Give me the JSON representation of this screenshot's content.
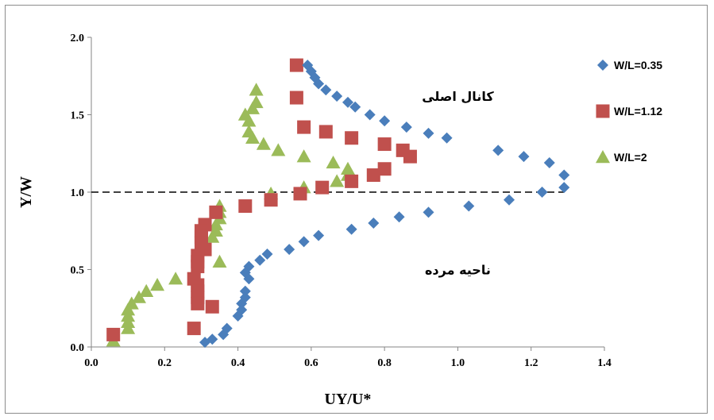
{
  "chart_data": {
    "type": "scatter",
    "title": "",
    "xlabel": "UY/U*",
    "ylabel": "Y/W",
    "xlim": [
      0.0,
      1.4
    ],
    "ylim": [
      0.0,
      2.0
    ],
    "x_ticks": [
      "0.0",
      "0.2",
      "0.4",
      "0.6",
      "0.8",
      "1.0",
      "1.2",
      "1.4"
    ],
    "y_ticks": [
      "0.0",
      "0.5",
      "1.0",
      "1.5",
      "2.0"
    ],
    "grid": false,
    "legend_position": "right",
    "reference_line": {
      "y": 1.0,
      "style": "dashed",
      "x_range": [
        0.0,
        1.29
      ]
    },
    "annotations": [
      {
        "text": "کانال اصلی",
        "x": 1.0,
        "y": 1.62
      },
      {
        "text": "ناحیه مرده",
        "x": 1.0,
        "y": 0.5
      }
    ],
    "series": [
      {
        "name": "W/L=0.35",
        "marker": "diamond",
        "color": "#4a7ebb",
        "points": [
          [
            0.59,
            1.82
          ],
          [
            0.6,
            1.78
          ],
          [
            0.61,
            1.74
          ],
          [
            0.62,
            1.7
          ],
          [
            0.64,
            1.66
          ],
          [
            0.67,
            1.62
          ],
          [
            0.7,
            1.58
          ],
          [
            0.72,
            1.55
          ],
          [
            0.76,
            1.5
          ],
          [
            0.8,
            1.46
          ],
          [
            0.86,
            1.42
          ],
          [
            0.92,
            1.38
          ],
          [
            0.97,
            1.35
          ],
          [
            1.11,
            1.27
          ],
          [
            1.18,
            1.23
          ],
          [
            1.25,
            1.19
          ],
          [
            1.29,
            1.11
          ],
          [
            1.29,
            1.03
          ],
          [
            1.23,
            1.0
          ],
          [
            1.14,
            0.95
          ],
          [
            1.03,
            0.91
          ],
          [
            0.92,
            0.87
          ],
          [
            0.84,
            0.84
          ],
          [
            0.77,
            0.8
          ],
          [
            0.71,
            0.76
          ],
          [
            0.62,
            0.72
          ],
          [
            0.58,
            0.68
          ],
          [
            0.54,
            0.63
          ],
          [
            0.48,
            0.6
          ],
          [
            0.46,
            0.56
          ],
          [
            0.43,
            0.52
          ],
          [
            0.42,
            0.48
          ],
          [
            0.43,
            0.44
          ],
          [
            0.42,
            0.36
          ],
          [
            0.42,
            0.32
          ],
          [
            0.41,
            0.28
          ],
          [
            0.41,
            0.24
          ],
          [
            0.4,
            0.2
          ],
          [
            0.37,
            0.12
          ],
          [
            0.36,
            0.08
          ],
          [
            0.33,
            0.05
          ],
          [
            0.31,
            0.03
          ]
        ]
      },
      {
        "name": "W/L=1.12",
        "marker": "square",
        "color": "#c0504d",
        "points": [
          [
            0.56,
            1.82
          ],
          [
            0.56,
            1.61
          ],
          [
            0.58,
            1.42
          ],
          [
            0.64,
            1.39
          ],
          [
            0.71,
            1.35
          ],
          [
            0.8,
            1.31
          ],
          [
            0.85,
            1.27
          ],
          [
            0.87,
            1.23
          ],
          [
            0.8,
            1.15
          ],
          [
            0.77,
            1.11
          ],
          [
            0.71,
            1.07
          ],
          [
            0.63,
            1.03
          ],
          [
            0.57,
            0.99
          ],
          [
            0.49,
            0.95
          ],
          [
            0.42,
            0.91
          ],
          [
            0.34,
            0.87
          ],
          [
            0.31,
            0.79
          ],
          [
            0.3,
            0.75
          ],
          [
            0.3,
            0.71
          ],
          [
            0.3,
            0.67
          ],
          [
            0.31,
            0.63
          ],
          [
            0.29,
            0.59
          ],
          [
            0.29,
            0.55
          ],
          [
            0.29,
            0.52
          ],
          [
            0.28,
            0.44
          ],
          [
            0.29,
            0.4
          ],
          [
            0.29,
            0.36
          ],
          [
            0.29,
            0.32
          ],
          [
            0.29,
            0.28
          ],
          [
            0.33,
            0.26
          ],
          [
            0.28,
            0.12
          ],
          [
            0.06,
            0.08
          ]
        ]
      },
      {
        "name": "W/L=2",
        "marker": "triangle",
        "color": "#9bbb59",
        "points": [
          [
            0.45,
            1.66
          ],
          [
            0.45,
            1.58
          ],
          [
            0.44,
            1.54
          ],
          [
            0.42,
            1.5
          ],
          [
            0.43,
            1.46
          ],
          [
            0.43,
            1.39
          ],
          [
            0.44,
            1.35
          ],
          [
            0.47,
            1.31
          ],
          [
            0.51,
            1.27
          ],
          [
            0.58,
            1.23
          ],
          [
            0.66,
            1.19
          ],
          [
            0.7,
            1.15
          ],
          [
            0.7,
            1.11
          ],
          [
            0.67,
            1.07
          ],
          [
            0.58,
            1.03
          ],
          [
            0.49,
            0.99
          ],
          [
            0.35,
            0.91
          ],
          [
            0.35,
            0.87
          ],
          [
            0.35,
            0.83
          ],
          [
            0.34,
            0.79
          ],
          [
            0.34,
            0.75
          ],
          [
            0.33,
            0.71
          ],
          [
            0.35,
            0.55
          ],
          [
            0.23,
            0.44
          ],
          [
            0.18,
            0.4
          ],
          [
            0.15,
            0.36
          ],
          [
            0.13,
            0.32
          ],
          [
            0.11,
            0.28
          ],
          [
            0.1,
            0.24
          ],
          [
            0.1,
            0.2
          ],
          [
            0.1,
            0.16
          ],
          [
            0.1,
            0.12
          ],
          [
            0.06,
            0.04
          ]
        ]
      }
    ]
  }
}
